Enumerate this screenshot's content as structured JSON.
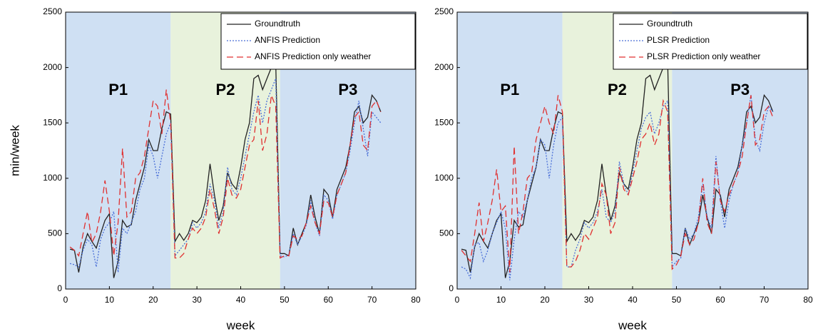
{
  "chart_data": [
    {
      "type": "line",
      "y_label": "min/week",
      "x_label": "week",
      "xlim": [
        0,
        80
      ],
      "ylim": [
        0,
        2500
      ],
      "xticks": [
        0,
        10,
        20,
        30,
        40,
        50,
        60,
        70,
        80
      ],
      "yticks": [
        0,
        500,
        1000,
        1500,
        2000,
        2500
      ],
      "regions": [
        {
          "label": "P1",
          "start": 0,
          "end": 24,
          "color": "#cfe0f3"
        },
        {
          "label": "P2",
          "start": 24,
          "end": 49,
          "color": "#e8f2dc"
        },
        {
          "label": "P3",
          "start": 49,
          "end": 80,
          "color": "#cfe0f3"
        }
      ],
      "legend": "upper right",
      "x": [
        1,
        2,
        3,
        4,
        5,
        6,
        7,
        8,
        9,
        10,
        11,
        12,
        13,
        14,
        15,
        16,
        17,
        18,
        19,
        20,
        21,
        22,
        23,
        24,
        25,
        26,
        27,
        28,
        29,
        30,
        31,
        32,
        33,
        34,
        35,
        36,
        37,
        38,
        39,
        40,
        41,
        42,
        43,
        44,
        45,
        46,
        47,
        48,
        49,
        50,
        51,
        52,
        53,
        54,
        55,
        56,
        57,
        58,
        59,
        60,
        61,
        62,
        63,
        64,
        65,
        66,
        67,
        68,
        69,
        70,
        71,
        72
      ],
      "series": [
        {
          "name": "Groundtruth",
          "color": "#222222",
          "style": "solid",
          "values": [
            360,
            350,
            150,
            380,
            500,
            430,
            370,
            500,
            620,
            680,
            100,
            250,
            620,
            560,
            580,
            800,
            950,
            1100,
            1350,
            1250,
            1250,
            1450,
            1600,
            1580,
            430,
            500,
            440,
            500,
            620,
            600,
            650,
            800,
            1130,
            850,
            620,
            750,
            1050,
            950,
            900,
            1100,
            1350,
            1500,
            1900,
            1930,
            1800,
            1900,
            2000,
            2050,
            320,
            320,
            300,
            550,
            400,
            500,
            600,
            850,
            650,
            500,
            900,
            850,
            650,
            900,
            1000,
            1100,
            1300,
            1600,
            1650,
            1500,
            1550,
            1750,
            1700,
            1600
          ]
        },
        {
          "name": "ANFIS Prediction",
          "color": "#4a6fd8",
          "style": "dotted",
          "values": [
            230,
            220,
            200,
            350,
            450,
            400,
            200,
            450,
            550,
            600,
            700,
            150,
            550,
            500,
            600,
            700,
            900,
            1000,
            1300,
            1200,
            1000,
            1200,
            1400,
            1500,
            300,
            350,
            400,
            450,
            600,
            550,
            600,
            700,
            950,
            800,
            550,
            700,
            1100,
            900,
            850,
            1000,
            1200,
            1400,
            1600,
            1750,
            1500,
            1700,
            1800,
            1900,
            300,
            290,
            310,
            500,
            400,
            480,
            580,
            800,
            600,
            480,
            850,
            800,
            630,
            850,
            950,
            1050,
            1250,
            1500,
            1700,
            1450,
            1200,
            1600,
            1550,
            1500
          ]
        },
        {
          "name": "ANFIS Prediction only weather",
          "color": "#e03030",
          "style": "dashed",
          "values": [
            380,
            350,
            300,
            500,
            700,
            420,
            500,
            700,
            980,
            700,
            300,
            600,
            1270,
            650,
            700,
            1000,
            1050,
            1200,
            1450,
            1700,
            1650,
            1400,
            1800,
            1500,
            280,
            280,
            320,
            450,
            550,
            500,
            550,
            650,
            900,
            720,
            500,
            650,
            1000,
            850,
            820,
            900,
            1100,
            1300,
            1350,
            1700,
            1250,
            1400,
            1750,
            1650,
            280,
            300,
            300,
            480,
            450,
            480,
            600,
            750,
            600,
            500,
            800,
            780,
            650,
            850,
            950,
            1050,
            1300,
            1550,
            1600,
            1300,
            1250,
            1650,
            1700,
            1600
          ]
        }
      ]
    },
    {
      "type": "line",
      "x_label": "week",
      "xlim": [
        0,
        80
      ],
      "ylim": [
        0,
        2500
      ],
      "xticks": [
        0,
        10,
        20,
        30,
        40,
        50,
        60,
        70,
        80
      ],
      "yticks": [
        0,
        500,
        1000,
        1500,
        2000,
        2500
      ],
      "regions": [
        {
          "label": "P1",
          "start": 0,
          "end": 24,
          "color": "#cfe0f3"
        },
        {
          "label": "P2",
          "start": 24,
          "end": 49,
          "color": "#e8f2dc"
        },
        {
          "label": "P3",
          "start": 49,
          "end": 80,
          "color": "#cfe0f3"
        }
      ],
      "legend": "upper right",
      "x": [
        1,
        2,
        3,
        4,
        5,
        6,
        7,
        8,
        9,
        10,
        11,
        12,
        13,
        14,
        15,
        16,
        17,
        18,
        19,
        20,
        21,
        22,
        23,
        24,
        25,
        26,
        27,
        28,
        29,
        30,
        31,
        32,
        33,
        34,
        35,
        36,
        37,
        38,
        39,
        40,
        41,
        42,
        43,
        44,
        45,
        46,
        47,
        48,
        49,
        50,
        51,
        52,
        53,
        54,
        55,
        56,
        57,
        58,
        59,
        60,
        61,
        62,
        63,
        64,
        65,
        66,
        67,
        68,
        69,
        70,
        71,
        72
      ],
      "series": [
        {
          "name": "Groundtruth",
          "color": "#222222",
          "style": "solid",
          "values": [
            360,
            350,
            150,
            380,
            500,
            430,
            370,
            500,
            620,
            680,
            100,
            250,
            620,
            560,
            580,
            800,
            950,
            1100,
            1350,
            1250,
            1250,
            1450,
            1600,
            1580,
            430,
            500,
            440,
            500,
            620,
            600,
            650,
            800,
            1130,
            850,
            620,
            750,
            1050,
            950,
            900,
            1100,
            1350,
            1500,
            1900,
            1930,
            1800,
            1900,
            2000,
            2050,
            320,
            320,
            300,
            550,
            400,
            500,
            600,
            850,
            650,
            500,
            900,
            850,
            650,
            900,
            1000,
            1100,
            1300,
            1600,
            1650,
            1500,
            1550,
            1750,
            1700,
            1600
          ]
        },
        {
          "name": "PLSR Prediction",
          "color": "#4a6fd8",
          "style": "dotted",
          "values": [
            200,
            180,
            100,
            400,
            420,
            250,
            350,
            500,
            600,
            700,
            550,
            80,
            450,
            700,
            650,
            800,
            1000,
            1100,
            1350,
            1300,
            1000,
            1300,
            1500,
            1550,
            200,
            200,
            350,
            450,
            600,
            550,
            600,
            700,
            900,
            650,
            600,
            700,
            1150,
            950,
            850,
            1050,
            1250,
            1450,
            1550,
            1600,
            1400,
            1500,
            1650,
            1700,
            200,
            250,
            280,
            550,
            450,
            500,
            650,
            950,
            650,
            550,
            1200,
            800,
            550,
            800,
            950,
            1050,
            1300,
            1500,
            1750,
            1350,
            1250,
            1500,
            1650,
            1600
          ]
        },
        {
          "name": "PLSR Prediction only weather",
          "color": "#e03030",
          "style": "dashed",
          "values": [
            350,
            300,
            250,
            500,
            780,
            430,
            600,
            800,
            1080,
            700,
            750,
            150,
            1290,
            500,
            700,
            1000,
            1050,
            1350,
            1500,
            1650,
            1500,
            1400,
            1750,
            1600,
            200,
            200,
            250,
            350,
            500,
            450,
            550,
            650,
            950,
            850,
            500,
            600,
            1100,
            900,
            850,
            1000,
            1150,
            1350,
            1400,
            1500,
            1300,
            1400,
            1700,
            1600,
            180,
            220,
            300,
            500,
            400,
            450,
            600,
            1000,
            600,
            500,
            1150,
            800,
            700,
            850,
            950,
            1050,
            1200,
            1500,
            1750,
            1300,
            1350,
            1600,
            1650,
            1550
          ]
        }
      ]
    }
  ]
}
